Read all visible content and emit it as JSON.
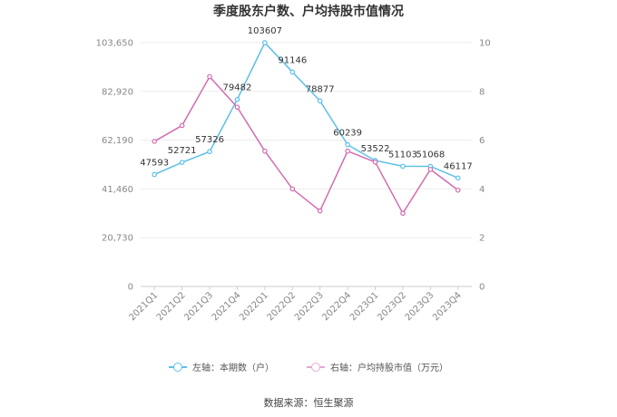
{
  "chart_data": {
    "type": "line",
    "title": "季度股东户数、户均持股市值情况",
    "categories": [
      "2021Q1",
      "2021Q2",
      "2021Q3",
      "2021Q4",
      "2022Q1",
      "2022Q2",
      "2022Q3",
      "2022Q4",
      "2023Q1",
      "2023Q2",
      "2023Q3",
      "2023Q4"
    ],
    "left_axis": {
      "ylim": [
        0,
        103650
      ],
      "ticks": [
        "0",
        "20,730",
        "41,460",
        "62,190",
        "82,920",
        "103,650"
      ]
    },
    "right_axis": {
      "ylim": [
        0,
        10
      ],
      "ticks": [
        "0",
        "2",
        "4",
        "6",
        "8",
        "10"
      ]
    },
    "series": [
      {
        "name": "左轴：本期数（户）",
        "axis": "left",
        "color": "#5bc0e8",
        "values": [
          47593,
          52721,
          57326,
          79482,
          103607,
          91146,
          78877,
          60239,
          53522,
          51103,
          51068,
          46117
        ],
        "labels": [
          "47593",
          "52721",
          "57326",
          "79482",
          "103607",
          "91146",
          "78877",
          "60239",
          "53522",
          "51103",
          "51068",
          "46117"
        ]
      },
      {
        "name": "右轴：户均持股市值（万元）",
        "axis": "right",
        "color": "#d36bb0",
        "values": [
          5.95,
          6.6,
          8.6,
          7.35,
          5.55,
          4.0,
          3.1,
          5.55,
          5.1,
          3.0,
          4.8,
          3.95
        ]
      }
    ],
    "grid": true,
    "legend_position": "bottom"
  },
  "source": "数据来源：恒生聚源"
}
